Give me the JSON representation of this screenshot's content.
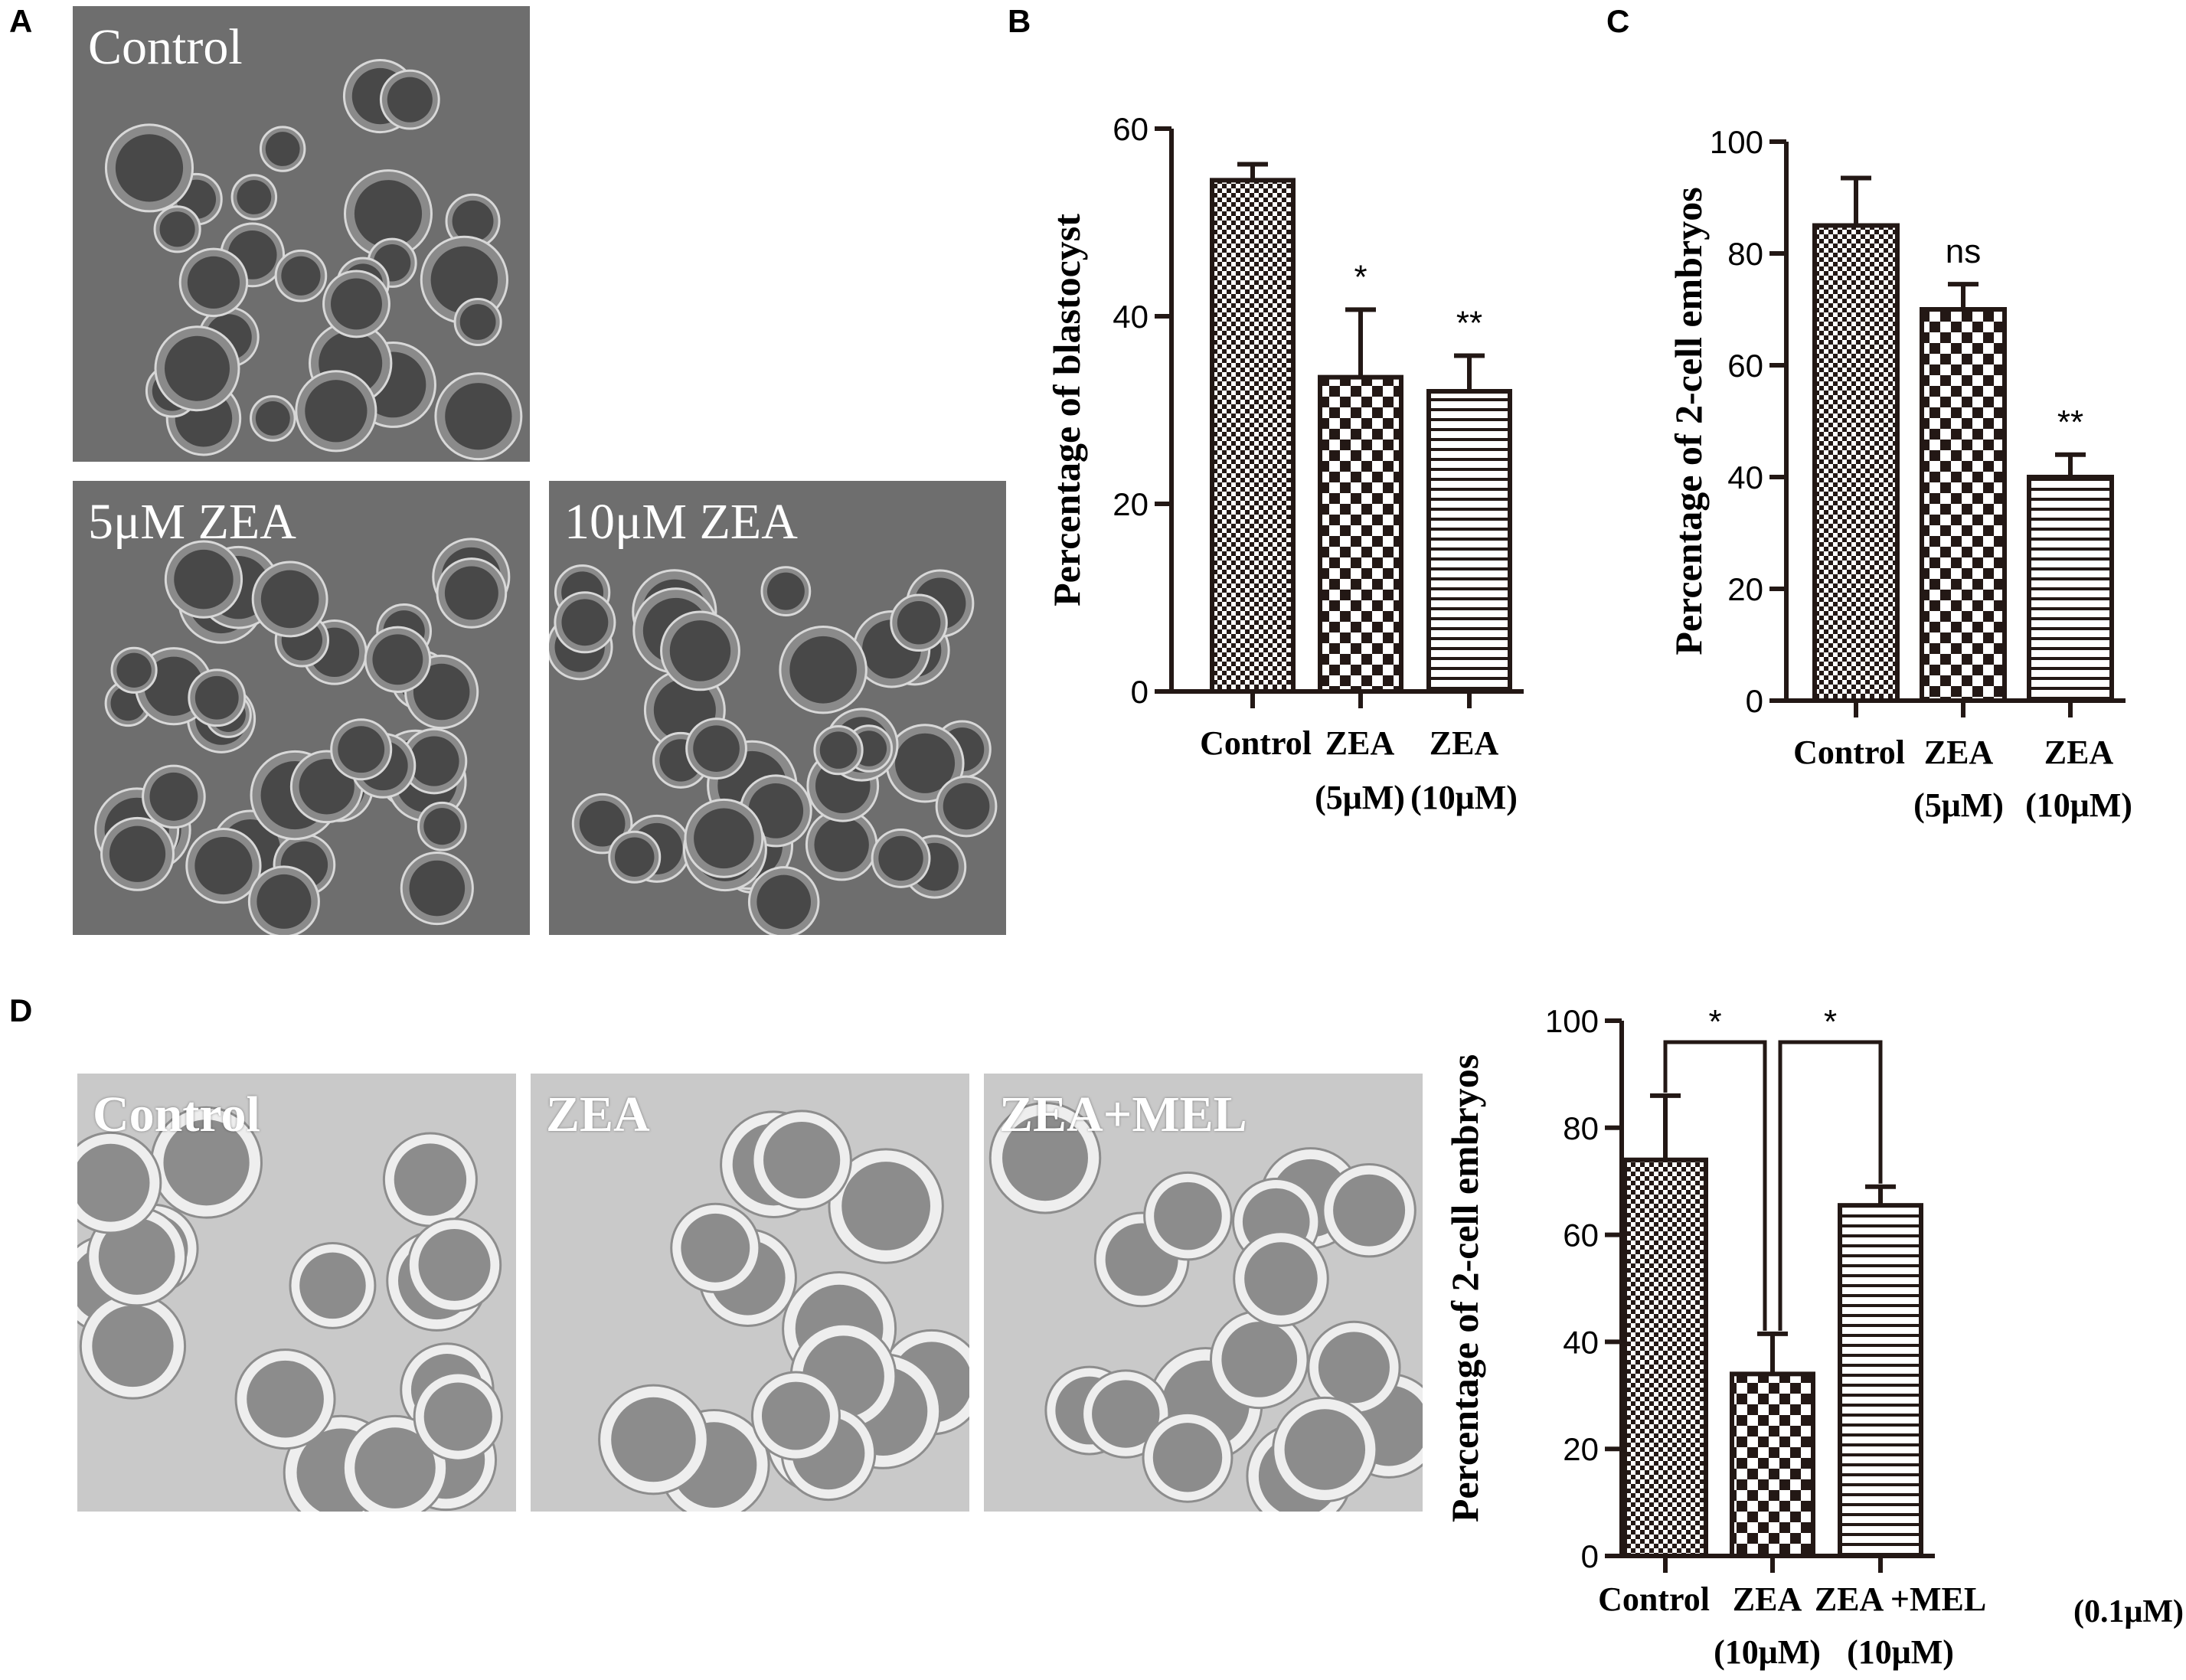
{
  "panel_letters": {
    "a": "A",
    "b": "B",
    "c": "C",
    "d": "D"
  },
  "micrographs": {
    "a": [
      {
        "label": "Control"
      },
      {
        "label": "5μM ZEA"
      },
      {
        "label": "10μM ZEA"
      }
    ],
    "d": [
      {
        "label": "Control"
      },
      {
        "label": "ZEA"
      },
      {
        "label": "ZEA+MEL"
      }
    ]
  },
  "colors": {
    "bar_stroke": "#231815",
    "axis": "#231815",
    "micro_dark": "#6e6e6e",
    "micro_light": "#c9c9c9"
  },
  "chart_data": [
    {
      "panel": "B",
      "type": "bar",
      "ylabel": "Percentage of blastocyst",
      "ylim": [
        0,
        60
      ],
      "yticks": [
        0,
        20,
        40,
        60
      ],
      "categories": [
        {
          "line1": "Control",
          "line2": ""
        },
        {
          "line1": "ZEA",
          "line2": "(5μM)"
        },
        {
          "line1": "ZEA",
          "line2": "(10μM)"
        }
      ],
      "values": [
        54.5,
        33.5,
        32
      ],
      "errors": [
        1.7,
        7.2,
        3.8
      ],
      "significance": [
        "",
        "*",
        "**"
      ],
      "patterns": [
        "fine-check",
        "checker",
        "horizontal-lines"
      ]
    },
    {
      "panel": "C",
      "type": "bar",
      "ylabel": "Percentage of 2-cell embryos",
      "ylim": [
        0,
        100
      ],
      "yticks": [
        0,
        20,
        40,
        60,
        80,
        100
      ],
      "categories": [
        {
          "line1": "Control",
          "line2": ""
        },
        {
          "line1": "ZEA",
          "line2": "(5μM)"
        },
        {
          "line1": "ZEA",
          "line2": "(10μM)"
        }
      ],
      "values": [
        85,
        70,
        40
      ],
      "errors": [
        8.5,
        4.5,
        4
      ],
      "significance": [
        "",
        "ns",
        "**"
      ],
      "patterns": [
        "fine-check",
        "checker",
        "horizontal-lines"
      ]
    },
    {
      "panel": "D",
      "type": "bar",
      "ylabel": "Percentage of 2-cell embryos",
      "ylim": [
        0,
        100
      ],
      "yticks": [
        0,
        20,
        40,
        60,
        80,
        100
      ],
      "categories": [
        {
          "line1": "Control",
          "line2": ""
        },
        {
          "line1": "ZEA",
          "line2": "(10μM)"
        },
        {
          "line1": "ZEA +MEL",
          "line2": "(10μM)"
        }
      ],
      "extra_label": "(0.1μM)",
      "values": [
        74,
        34,
        65.5
      ],
      "errors": [
        12,
        7.5,
        3.5
      ],
      "significance": [],
      "brackets": [
        {
          "from": 0,
          "to": 1,
          "label": "*"
        },
        {
          "from": 1,
          "to": 2,
          "label": "*"
        }
      ],
      "patterns": [
        "fine-check",
        "checker",
        "horizontal-lines"
      ]
    }
  ]
}
